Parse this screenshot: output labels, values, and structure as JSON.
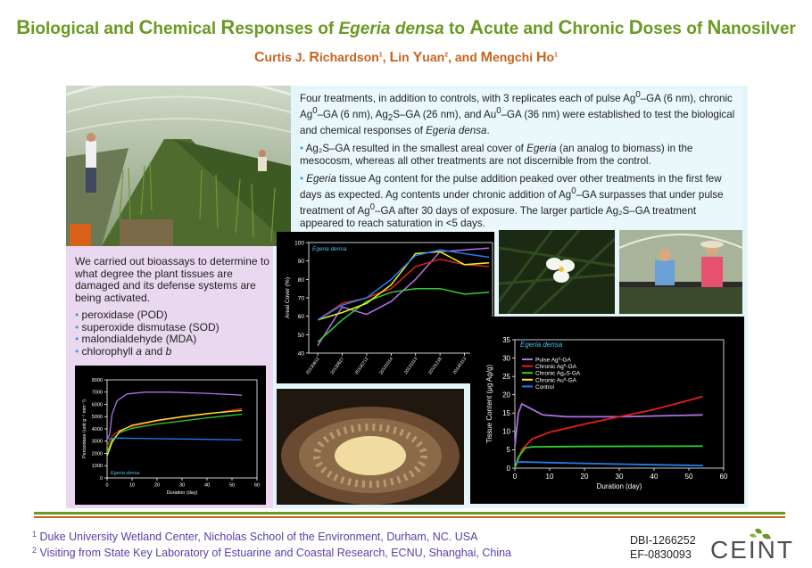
{
  "poster": {
    "title_parts": [
      {
        "initial": "B",
        "rest": "iological and "
      },
      {
        "initial": "C",
        "rest": "hemical "
      },
      {
        "initial": "R",
        "rest": "esponses of "
      },
      {
        "italic": "Egeria densa"
      },
      {
        "plain": " to "
      },
      {
        "initial": "A",
        "rest": "cute and "
      },
      {
        "initial": "C",
        "rest": "hronic "
      },
      {
        "initial": "D",
        "rest": "oses of "
      },
      {
        "initial": "N",
        "rest": "anosilver"
      }
    ],
    "authors": [
      {
        "initial": "C",
        "rest": "urtis J. ",
        "initial2": "R",
        "rest2": "ichardson",
        "sup": "1"
      },
      {
        "initial": "L",
        "rest": "in ",
        "initial2": "Y",
        "rest2": "uan",
        "sup": "2"
      },
      {
        "initial": "M",
        "rest": "engchi ",
        "initial2": "H",
        "rest2": "o",
        "sup": "1"
      }
    ],
    "authors_sep": ", ",
    "authors_and": ", and ",
    "summary": {
      "intro_a": "Four treatments, in addition to controls, with 3 replicates each of pulse Ag",
      "intro_b": "–GA (6 nm), chronic Ag",
      "intro_c": "–GA (6 nm), Ag",
      "intro_d": "S–GA (26 nm), and Au",
      "intro_e": "–GA (36 nm) were established to test the biological and chemical responses of ",
      "intro_italic": "Egeria densa",
      "intro_end": ".",
      "sup0": "0",
      "sub2": "2",
      "bullet": "•",
      "b1_a": " Ag₂S–GA resulted in the smallest areal cover of ",
      "b1_italic": "Egeria",
      "b1_b": " (an analog to biomass) in the mesocosm, whereas all other treatments are not discernible from the control.",
      "b2_italic": "Egeria",
      "b2_a": " tissue Ag content for the pulse addition peaked over other treatments in the first few days as expected. Ag contents under chronic addition of Ag",
      "b2_b": "–GA surpasses that under pulse treatment of Ag",
      "b2_c": "–GA after 30 days of exposure. The larger particle Ag₂S–GA treatment appeared to reach saturation in <5 days."
    },
    "bioassay": {
      "intro": "We carried out bioassays to determine to what degree the plant tissues are damaged and its defense systems are being activated.",
      "items": [
        {
          "text": "peroxidase (POD)"
        },
        {
          "text": "superoxide dismutase (SOD)"
        },
        {
          "text": "malondialdehyde (MDA)"
        }
      ],
      "chl_a": "chlorophyll ",
      "chl_i1": "a",
      "chl_b": " and ",
      "chl_i2": "b"
    },
    "footnotes": {
      "n1": "1",
      "f1": " Duke University Wetland Center, Nicholas School of the Environment, Durham, NC. USA",
      "n2": "2",
      "f2": " Visiting from State Key Laboratory of Estuarine and Coastal Research, ECNU, Shanghai, China"
    },
    "grants": [
      "DBI-1266252",
      "EF-0830093"
    ],
    "logo_text": "CEINT"
  },
  "colors": {
    "title_green": "#6a9a22",
    "author_orange": "#c8641e",
    "pulse": "#b070e8",
    "chronic_ag": "#e02020",
    "chronic_ag2s": "#30d030",
    "chronic_au": "#f0f020",
    "control": "#2080f0"
  },
  "chart_data": [
    {
      "type": "line",
      "id": "cover",
      "title": "Egeria densa",
      "ylabel": "Areal Cover (%)",
      "xlabel": "",
      "ylim": [
        40,
        100
      ],
      "yticks": [
        40,
        50,
        60,
        70,
        80,
        90,
        100
      ],
      "x": [
        "20130612",
        "20130627",
        "20130712",
        "20131014",
        "20131113",
        "20131218",
        "20140113",
        "201"
      ],
      "series": [
        {
          "color": "#b070e8",
          "values": [
            44,
            65,
            61,
            68,
            80,
            95,
            96,
            97
          ]
        },
        {
          "color": "#e02020",
          "values": [
            58,
            67,
            70,
            75,
            87,
            91,
            88,
            87
          ]
        },
        {
          "color": "#30d030",
          "values": [
            46,
            58,
            68,
            73,
            75,
            75,
            72,
            73
          ]
        },
        {
          "color": "#f0f020",
          "values": [
            58,
            62,
            67,
            77,
            94,
            95,
            88,
            89
          ]
        },
        {
          "color": "#2080f0",
          "values": [
            58,
            66,
            70,
            80,
            93,
            96,
            94,
            92
          ]
        }
      ]
    },
    {
      "type": "line",
      "id": "tissue",
      "title": "Egeria densa",
      "xlabel": "Duration (day)",
      "ylabel": "Tissue Content (μg Ag/g)",
      "xlim": [
        0,
        60
      ],
      "ylim": [
        0,
        35
      ],
      "xticks": [
        0,
        10,
        20,
        30,
        40,
        50,
        60
      ],
      "yticks": [
        0,
        5,
        10,
        15,
        20,
        25,
        30,
        35
      ],
      "legend_position": "top-left",
      "legend": [
        {
          "name": "Pulse Ag⁰-GA",
          "color": "#b070e8"
        },
        {
          "name": "Chronic Ag⁰-GA",
          "color": "#e02020"
        },
        {
          "name": "Chronic Ag₂S-GA",
          "color": "#30d030"
        },
        {
          "name": "Chronic Au⁰-GA",
          "color": "#f0f020"
        },
        {
          "name": "Control",
          "color": "#2080f0"
        }
      ],
      "series": [
        {
          "color": "#b070e8",
          "points": [
            [
              0,
              6
            ],
            [
              1,
              15
            ],
            [
              2,
              17.5
            ],
            [
              4,
              16.5
            ],
            [
              8,
              14.5
            ],
            [
              15,
              14
            ],
            [
              30,
              14
            ],
            [
              54,
              14.5
            ]
          ]
        },
        {
          "color": "#e02020",
          "points": [
            [
              0,
              0
            ],
            [
              2,
              5
            ],
            [
              5,
              8
            ],
            [
              10,
              9.8
            ],
            [
              20,
              12
            ],
            [
              30,
              14
            ],
            [
              40,
              16
            ],
            [
              54,
              19.5
            ]
          ]
        },
        {
          "color": "#30d030",
          "points": [
            [
              0,
              0
            ],
            [
              1,
              3
            ],
            [
              3,
              5.5
            ],
            [
              5,
              5.8
            ],
            [
              20,
              5.9
            ],
            [
              54,
              6
            ]
          ]
        },
        {
          "color": "#2080f0",
          "points": [
            [
              0,
              1.5
            ],
            [
              2,
              1.7
            ],
            [
              10,
              1.5
            ],
            [
              30,
              1.1
            ],
            [
              54,
              0.7
            ]
          ]
        }
      ]
    },
    {
      "type": "line",
      "id": "peroxidase",
      "title": "Egeria densa",
      "xlabel": "Duration (day)",
      "ylabel": "Peroxidase (unit g⁻¹ min⁻¹)",
      "xlim": [
        0,
        60
      ],
      "ylim": [
        0,
        8000
      ],
      "xticks": [
        0,
        10,
        20,
        30,
        40,
        50,
        60
      ],
      "yticks": [
        0,
        1000,
        2000,
        3000,
        4000,
        5000,
        6000,
        7000,
        8000
      ],
      "series": [
        {
          "color": "#b070e8",
          "points": [
            [
              0,
              3200
            ],
            [
              1,
              3500
            ],
            [
              2,
              5200
            ],
            [
              4,
              6300
            ],
            [
              8,
              6850
            ],
            [
              15,
              7000
            ],
            [
              25,
              7000
            ],
            [
              40,
              6900
            ],
            [
              54,
              6750
            ]
          ]
        },
        {
          "color": "#e02020",
          "points": [
            [
              0,
              2600
            ],
            [
              2,
              3400
            ],
            [
              5,
              3900
            ],
            [
              10,
              4200
            ],
            [
              20,
              4650
            ],
            [
              30,
              4950
            ],
            [
              40,
              5200
            ],
            [
              54,
              5650
            ]
          ]
        },
        {
          "color": "#30d030",
          "points": [
            [
              0,
              2100
            ],
            [
              2,
              3100
            ],
            [
              5,
              3700
            ],
            [
              10,
              4050
            ],
            [
              20,
              4400
            ],
            [
              30,
              4650
            ],
            [
              40,
              4900
            ],
            [
              54,
              5200
            ]
          ]
        },
        {
          "color": "#f0f020",
          "points": [
            [
              0,
              1800
            ],
            [
              2,
              2900
            ],
            [
              5,
              3800
            ],
            [
              10,
              4300
            ],
            [
              20,
              4700
            ],
            [
              30,
              5000
            ],
            [
              40,
              5250
            ],
            [
              54,
              5500
            ]
          ]
        },
        {
          "color": "#2080f0",
          "points": [
            [
              0,
              3200
            ],
            [
              5,
              3250
            ],
            [
              20,
              3200
            ],
            [
              40,
              3150
            ],
            [
              54,
              3100
            ]
          ]
        }
      ]
    }
  ]
}
